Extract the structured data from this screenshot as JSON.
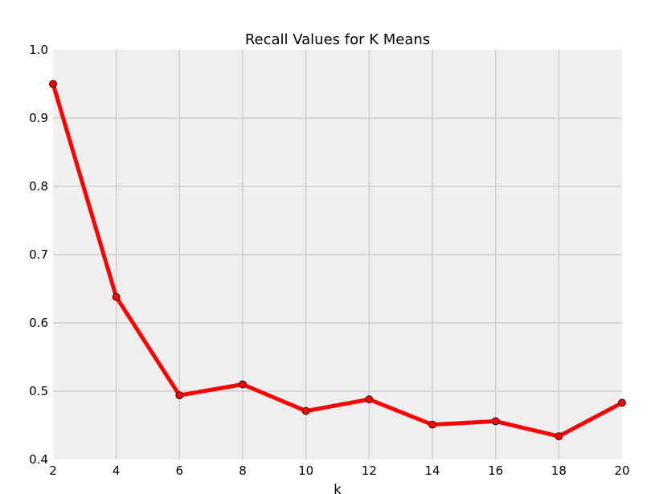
{
  "chart_data": {
    "type": "line",
    "title": "Recall Values for K Means",
    "xlabel": "k",
    "ylabel": "",
    "x": [
      2,
      4,
      6,
      8,
      10,
      12,
      14,
      16,
      18,
      20
    ],
    "series": [
      {
        "name": "Recall",
        "values": [
          0.95,
          0.638,
          0.494,
          0.51,
          0.471,
          0.488,
          0.451,
          0.456,
          0.434,
          0.483
        ]
      }
    ],
    "xlim": [
      2,
      20
    ],
    "ylim": [
      0.4,
      1.0
    ],
    "xticks": [
      2,
      4,
      6,
      8,
      10,
      12,
      14,
      16,
      18,
      20
    ],
    "xtick_labels": [
      "2",
      "4",
      "6",
      "8",
      "10",
      "12",
      "14",
      "16",
      "18",
      "20"
    ],
    "yticks": [
      0.4,
      0.5,
      0.6,
      0.7,
      0.8,
      0.9,
      1.0
    ],
    "ytick_labels": [
      "0.4",
      "0.5",
      "0.6",
      "0.7",
      "0.8",
      "0.9",
      "1.0"
    ],
    "grid": true,
    "colors": {
      "line": "#ff0000",
      "marker": "#ff0000",
      "background": "#efefef",
      "grid": "#cbcbcb"
    }
  }
}
